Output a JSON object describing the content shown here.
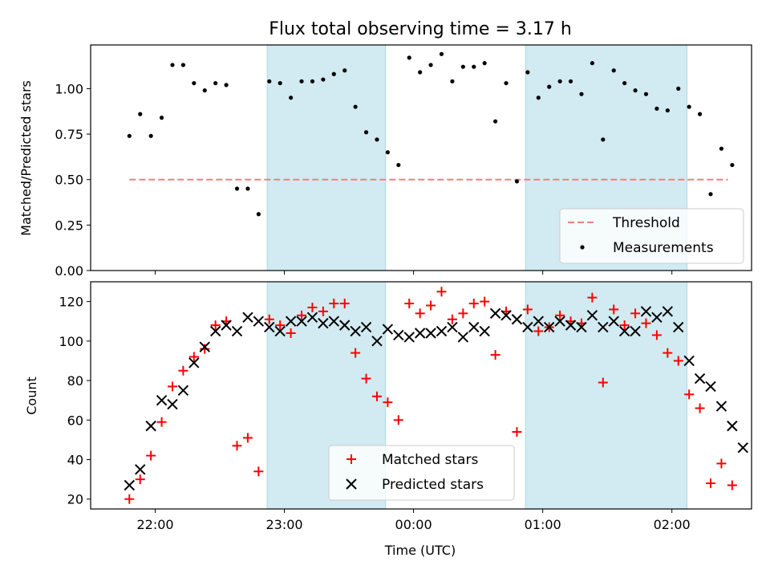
{
  "chart_data": [
    {
      "type": "scatter",
      "title": "Flux total observing time = 3.17 h",
      "ylabel": "Matched/Predicted stars",
      "ylim": [
        0,
        1.24
      ],
      "yticks": [
        "0.00",
        "0.25",
        "0.50",
        "0.75",
        "1.00"
      ],
      "threshold": {
        "name": "Threshold",
        "value": 0.5,
        "x_range": [
          "21:48",
          "02:26"
        ],
        "color": "#f08080"
      },
      "legend": {
        "position": "lower right",
        "entries": [
          "Threshold",
          "Measurements"
        ]
      },
      "series": [
        {
          "name": "Measurements",
          "color": "#000000",
          "points": [
            [
              "21:48",
              0.74
            ],
            [
              "21:53",
              0.86
            ],
            [
              "21:58",
              0.74
            ],
            [
              "22:03",
              0.84
            ],
            [
              "22:08",
              1.13
            ],
            [
              "22:13",
              1.13
            ],
            [
              "22:18",
              1.03
            ],
            [
              "22:23",
              0.99
            ],
            [
              "22:28",
              1.03
            ],
            [
              "22:33",
              1.02
            ],
            [
              "22:38",
              0.45
            ],
            [
              "22:43",
              0.45
            ],
            [
              "22:48",
              0.31
            ],
            [
              "22:53",
              1.04
            ],
            [
              "22:58",
              1.03
            ],
            [
              "23:03",
              0.95
            ],
            [
              "23:08",
              1.04
            ],
            [
              "23:13",
              1.04
            ],
            [
              "23:18",
              1.05
            ],
            [
              "23:23",
              1.08
            ],
            [
              "23:28",
              1.1
            ],
            [
              "23:33",
              0.9
            ],
            [
              "23:38",
              0.76
            ],
            [
              "23:43",
              0.72
            ],
            [
              "23:48",
              0.65
            ],
            [
              "23:53",
              0.58
            ],
            [
              "23:58",
              1.17
            ],
            [
              "00:03",
              1.09
            ],
            [
              "00:08",
              1.13
            ],
            [
              "00:13",
              1.19
            ],
            [
              "00:18",
              1.04
            ],
            [
              "00:23",
              1.12
            ],
            [
              "00:28",
              1.12
            ],
            [
              "00:33",
              1.14
            ],
            [
              "00:38",
              0.82
            ],
            [
              "00:43",
              1.03
            ],
            [
              "00:48",
              0.49
            ],
            [
              "00:53",
              1.09
            ],
            [
              "00:58",
              0.95
            ],
            [
              "01:03",
              1.01
            ],
            [
              "01:08",
              1.04
            ],
            [
              "01:13",
              1.04
            ],
            [
              "01:18",
              0.97
            ],
            [
              "01:23",
              1.14
            ],
            [
              "01:28",
              0.72
            ],
            [
              "01:33",
              1.1
            ],
            [
              "01:38",
              1.03
            ],
            [
              "01:43",
              0.99
            ],
            [
              "01:48",
              0.97
            ],
            [
              "01:53",
              0.89
            ],
            [
              "01:58",
              0.88
            ],
            [
              "02:03",
              1.0
            ],
            [
              "02:08",
              0.9
            ],
            [
              "02:13",
              0.86
            ],
            [
              "02:18",
              0.42
            ],
            [
              "02:23",
              0.67
            ],
            [
              "02:28",
              0.58
            ]
          ]
        }
      ],
      "shaded_intervals": [
        [
          "22:52",
          "23:47"
        ],
        [
          "00:52",
          "02:07"
        ]
      ],
      "shade_color": "#add8e6"
    },
    {
      "type": "scatter",
      "xlabel": "Time (UTC)",
      "ylabel": "Count",
      "ylim": [
        15,
        130
      ],
      "yticks": [
        "20",
        "40",
        "60",
        "80",
        "100",
        "120"
      ],
      "xticks": [
        "22:00",
        "23:00",
        "00:00",
        "01:00",
        "02:00"
      ],
      "legend": {
        "position": "lower center",
        "entries": [
          "Matched stars",
          "Predicted stars"
        ]
      },
      "series": [
        {
          "name": "Matched stars",
          "marker": "+",
          "color": "#ff0000",
          "points": [
            [
              "21:48",
              20
            ],
            [
              "21:53",
              30
            ],
            [
              "21:58",
              42
            ],
            [
              "22:03",
              59
            ],
            [
              "22:08",
              77
            ],
            [
              "22:13",
              85
            ],
            [
              "22:18",
              92
            ],
            [
              "22:23",
              96
            ],
            [
              "22:28",
              108
            ],
            [
              "22:33",
              110
            ],
            [
              "22:38",
              47
            ],
            [
              "22:43",
              51
            ],
            [
              "22:48",
              34
            ],
            [
              "22:53",
              111
            ],
            [
              "22:58",
              108
            ],
            [
              "23:03",
              104
            ],
            [
              "23:08",
              113
            ],
            [
              "23:13",
              117
            ],
            [
              "23:18",
              115
            ],
            [
              "23:23",
              119
            ],
            [
              "23:28",
              119
            ],
            [
              "23:33",
              94
            ],
            [
              "23:38",
              81
            ],
            [
              "23:43",
              72
            ],
            [
              "23:48",
              69
            ],
            [
              "23:53",
              60
            ],
            [
              "23:58",
              119
            ],
            [
              "00:03",
              114
            ],
            [
              "00:08",
              118
            ],
            [
              "00:13",
              125
            ],
            [
              "00:18",
              111
            ],
            [
              "00:23",
              114
            ],
            [
              "00:28",
              119
            ],
            [
              "00:33",
              120
            ],
            [
              "00:38",
              93
            ],
            [
              "00:43",
              115
            ],
            [
              "00:48",
              54
            ],
            [
              "00:53",
              116
            ],
            [
              "00:58",
              105
            ],
            [
              "01:03",
              107
            ],
            [
              "01:08",
              113
            ],
            [
              "01:13",
              110
            ],
            [
              "01:18",
              109
            ],
            [
              "01:23",
              122
            ],
            [
              "01:28",
              79
            ],
            [
              "01:33",
              116
            ],
            [
              "01:38",
              108
            ],
            [
              "01:43",
              114
            ],
            [
              "01:48",
              109
            ],
            [
              "01:53",
              103
            ],
            [
              "01:58",
              94
            ],
            [
              "02:03",
              90
            ],
            [
              "02:08",
              73
            ],
            [
              "02:13",
              66
            ],
            [
              "02:18",
              28
            ],
            [
              "02:23",
              38
            ],
            [
              "02:28",
              27
            ]
          ]
        },
        {
          "name": "Predicted stars",
          "marker": "x",
          "color": "#000000",
          "points": [
            [
              "21:48",
              27
            ],
            [
              "21:53",
              35
            ],
            [
              "21:58",
              57
            ],
            [
              "22:03",
              70
            ],
            [
              "22:08",
              68
            ],
            [
              "22:13",
              75
            ],
            [
              "22:18",
              89
            ],
            [
              "22:23",
              97
            ],
            [
              "22:28",
              105
            ],
            [
              "22:33",
              108
            ],
            [
              "22:38",
              105
            ],
            [
              "22:43",
              112
            ],
            [
              "22:48",
              110
            ],
            [
              "22:53",
              107
            ],
            [
              "22:58",
              105
            ],
            [
              "23:03",
              110
            ],
            [
              "23:08",
              110
            ],
            [
              "23:13",
              112
            ],
            [
              "23:18",
              109
            ],
            [
              "23:23",
              110
            ],
            [
              "23:28",
              108
            ],
            [
              "23:33",
              105
            ],
            [
              "23:38",
              107
            ],
            [
              "23:43",
              100
            ],
            [
              "23:48",
              106
            ],
            [
              "23:53",
              103
            ],
            [
              "23:58",
              102
            ],
            [
              "00:03",
              104
            ],
            [
              "00:08",
              104
            ],
            [
              "00:13",
              105
            ],
            [
              "00:18",
              107
            ],
            [
              "00:23",
              102
            ],
            [
              "00:28",
              107
            ],
            [
              "00:33",
              105
            ],
            [
              "00:38",
              114
            ],
            [
              "00:43",
              113
            ],
            [
              "00:48",
              111
            ],
            [
              "00:53",
              107
            ],
            [
              "00:58",
              110
            ],
            [
              "01:03",
              107
            ],
            [
              "01:08",
              110
            ],
            [
              "01:13",
              108
            ],
            [
              "01:18",
              107
            ],
            [
              "01:23",
              113
            ],
            [
              "01:28",
              107
            ],
            [
              "01:33",
              110
            ],
            [
              "01:38",
              105
            ],
            [
              "01:43",
              105
            ],
            [
              "01:48",
              115
            ],
            [
              "01:53",
              112
            ],
            [
              "01:58",
              115
            ],
            [
              "02:03",
              107
            ],
            [
              "02:08",
              90
            ],
            [
              "02:13",
              81
            ],
            [
              "02:18",
              77
            ],
            [
              "02:23",
              67
            ],
            [
              "02:28",
              57
            ],
            [
              "02:33",
              46
            ]
          ]
        }
      ],
      "shaded_intervals": [
        [
          "22:52",
          "23:47"
        ],
        [
          "00:52",
          "02:07"
        ]
      ],
      "shade_color": "#add8e6"
    }
  ]
}
